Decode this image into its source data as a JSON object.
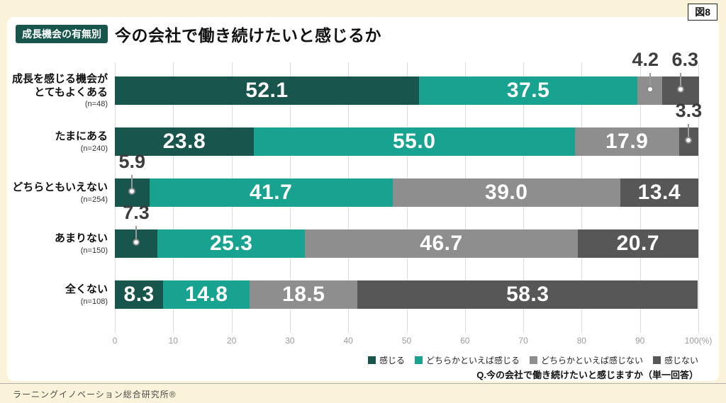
{
  "figure_tag": "図8",
  "header": {
    "badge": "成長機会の有無別",
    "title": "今の会社で働き続けたいと感じるか"
  },
  "chart_data": {
    "type": "bar",
    "stacked": true,
    "orientation": "horizontal",
    "categories": [
      "成長を感じる機会が\nとてもよくある",
      "たまにある",
      "どちらともいえない",
      "あまりない",
      "全くない"
    ],
    "n_labels": [
      "(n=48)",
      "(n=240)",
      "(n=254)",
      "(n=150)",
      "(n=108)"
    ],
    "series": [
      {
        "name": "感じる",
        "color": "#18564D",
        "values": [
          52.1,
          23.8,
          5.9,
          7.3,
          8.3
        ]
      },
      {
        "name": "どちらかといえば感じる",
        "color": "#17A390",
        "values": [
          37.5,
          55.0,
          41.7,
          25.3,
          14.8
        ]
      },
      {
        "name": "どちらかといえば感じない",
        "color": "#8E8E8E",
        "values": [
          4.2,
          17.9,
          39.0,
          46.7,
          18.5
        ]
      },
      {
        "name": "感じない",
        "color": "#575757",
        "values": [
          6.3,
          3.3,
          13.4,
          20.7,
          58.3
        ]
      }
    ],
    "xlim": [
      0,
      100
    ],
    "x_ticks": [
      0,
      10,
      20,
      30,
      40,
      50,
      60,
      70,
      80,
      90,
      100
    ],
    "x_axis_suffix": "(%)",
    "grid": true,
    "legend_position": "bottom-right"
  },
  "footer": {
    "question": "Q.今の会社で働き続けたいと感じますか（単一回答）",
    "source": "ラーニングイノベーション総合研究所®"
  }
}
